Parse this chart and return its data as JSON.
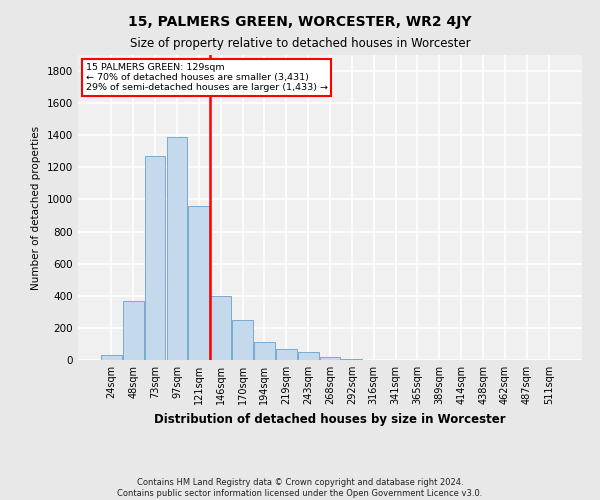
{
  "title": "15, PALMERS GREEN, WORCESTER, WR2 4JY",
  "subtitle": "Size of property relative to detached houses in Worcester",
  "xlabel": "Distribution of detached houses by size in Worcester",
  "ylabel": "Number of detached properties",
  "footnote": "Contains HM Land Registry data © Crown copyright and database right 2024.\nContains public sector information licensed under the Open Government Licence v3.0.",
  "bar_labels": [
    "24sqm",
    "48sqm",
    "73sqm",
    "97sqm",
    "121sqm",
    "146sqm",
    "170sqm",
    "194sqm",
    "219sqm",
    "243sqm",
    "268sqm",
    "292sqm",
    "316sqm",
    "341sqm",
    "365sqm",
    "389sqm",
    "414sqm",
    "438sqm",
    "462sqm",
    "487sqm",
    "511sqm"
  ],
  "bar_values": [
    30,
    370,
    1270,
    1390,
    960,
    400,
    250,
    115,
    70,
    50,
    20,
    5,
    2,
    0,
    0,
    0,
    0,
    0,
    0,
    0,
    0
  ],
  "bar_color": "#c5d9ed",
  "bar_edge_color": "#7aaace",
  "red_line_x": 4.5,
  "annotation_line1": "15 PALMERS GREEN: 129sqm",
  "annotation_line2": "← 70% of detached houses are smaller (3,431)",
  "annotation_line3": "29% of semi-detached houses are larger (1,433) →",
  "ylim": [
    0,
    1900
  ],
  "yticks": [
    0,
    200,
    400,
    600,
    800,
    1000,
    1200,
    1400,
    1600,
    1800
  ],
  "bg_color": "#e8e8e8",
  "plot_bg_color": "#f0f0f0",
  "grid_color": "#ffffff"
}
